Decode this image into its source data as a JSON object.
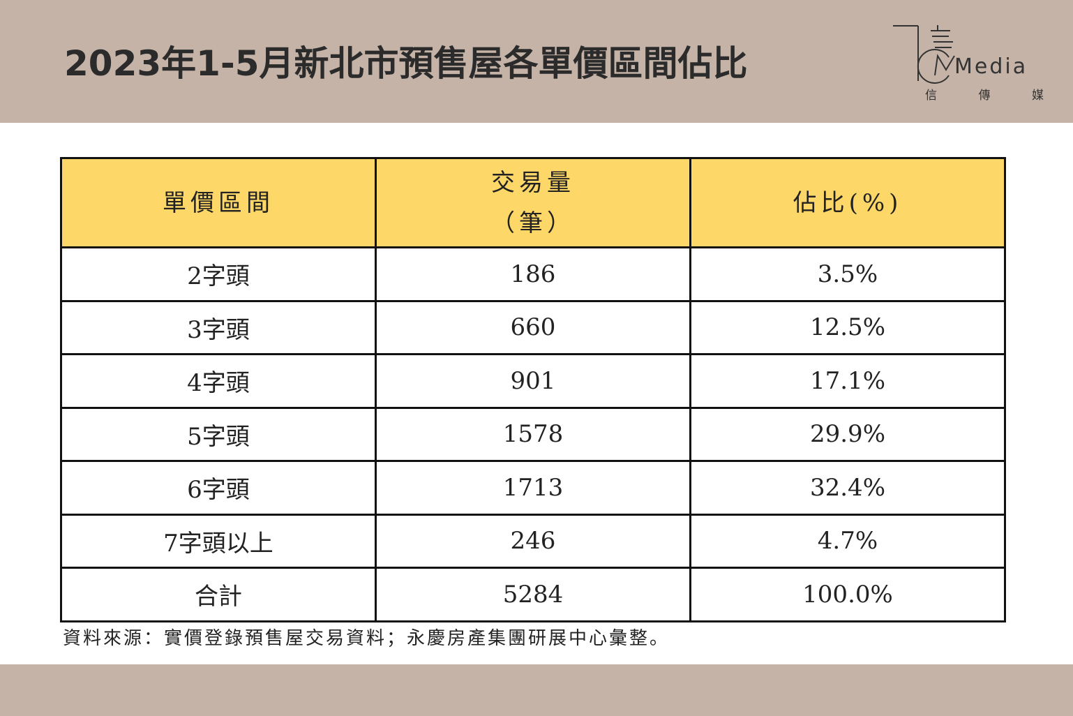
{
  "title": "2023年1-5月新北市預售屋各單價區間佔比",
  "logo": {
    "word": "Media",
    "sub": [
      "信",
      "傳",
      "媒"
    ]
  },
  "table": {
    "headers": {
      "col1": "單價區間",
      "col2_line1": "交易量",
      "col2_line2": "（筆）",
      "col3": "佔比(%)"
    },
    "rows": [
      {
        "range": "2字頭",
        "count": "186",
        "share": "3.5%"
      },
      {
        "range": "3字頭",
        "count": "660",
        "share": "12.5%"
      },
      {
        "range": "4字頭",
        "count": "901",
        "share": "17.1%"
      },
      {
        "range": "5字頭",
        "count": "1578",
        "share": "29.9%"
      },
      {
        "range": "6字頭",
        "count": "1713",
        "share": "32.4%"
      },
      {
        "range": "7字頭以上",
        "count": "246",
        "share": "4.7%"
      },
      {
        "range": "合計",
        "count": "5284",
        "share": "100.0%"
      }
    ]
  },
  "source": "資料來源：實價登錄預售屋交易資料；永慶房產集團研展中心彙整。",
  "colors": {
    "header_band": "#c5b3a7",
    "table_header": "#fdd767"
  }
}
